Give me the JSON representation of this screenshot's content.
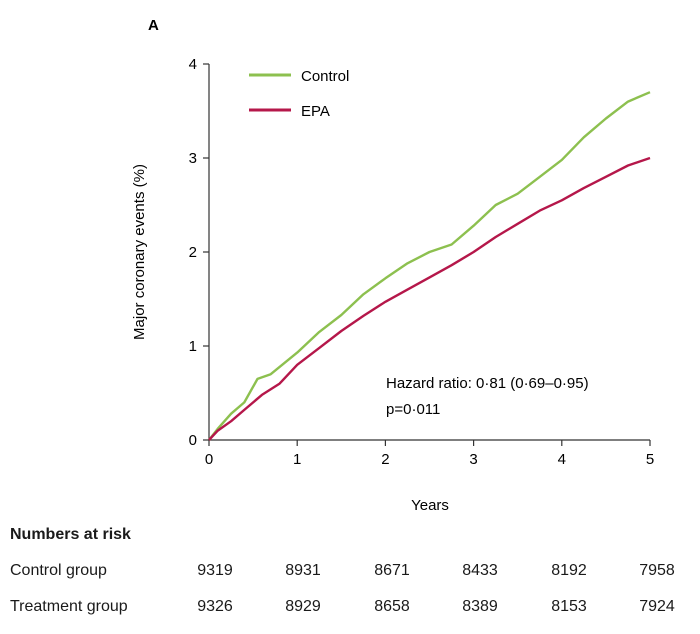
{
  "panel_label": "A",
  "chart_data": {
    "type": "line",
    "xlabel": "Years",
    "ylabel": "Major coronary events (%)",
    "xlim": [
      0,
      5
    ],
    "ylim": [
      0,
      4
    ],
    "xticks": [
      "0",
      "1",
      "2",
      "3",
      "4",
      "5"
    ],
    "yticks": [
      "0",
      "1",
      "2",
      "3",
      "4"
    ],
    "grid": false,
    "legend_position": "top-left",
    "series": [
      {
        "name": "Control",
        "color": "#8dc04f",
        "x": [
          0,
          0.1,
          0.25,
          0.4,
          0.55,
          0.7,
          1.0,
          1.25,
          1.5,
          1.75,
          2.0,
          2.25,
          2.5,
          2.75,
          3.0,
          3.25,
          3.5,
          3.75,
          4.0,
          4.25,
          4.5,
          4.75,
          5.0
        ],
        "y": [
          0,
          0.12,
          0.28,
          0.4,
          0.65,
          0.7,
          0.93,
          1.15,
          1.33,
          1.55,
          1.72,
          1.88,
          2.0,
          2.08,
          2.28,
          2.5,
          2.62,
          2.8,
          2.98,
          3.22,
          3.42,
          3.6,
          3.7
        ]
      },
      {
        "name": "EPA",
        "color": "#b5174a",
        "x": [
          0,
          0.1,
          0.25,
          0.4,
          0.6,
          0.8,
          1.0,
          1.25,
          1.5,
          1.75,
          2.0,
          2.25,
          2.5,
          2.75,
          3.0,
          3.25,
          3.5,
          3.75,
          4.0,
          4.25,
          4.5,
          4.75,
          5.0
        ],
        "y": [
          0,
          0.1,
          0.2,
          0.32,
          0.48,
          0.6,
          0.8,
          0.98,
          1.16,
          1.32,
          1.47,
          1.6,
          1.73,
          1.86,
          2.0,
          2.16,
          2.3,
          2.44,
          2.55,
          2.68,
          2.8,
          2.92,
          3.0
        ]
      }
    ],
    "annotations": [
      "Hazard ratio: 0·81 (0·69–0·95)",
      "p=0·011"
    ]
  },
  "risk_table": {
    "title": "Numbers at risk",
    "rows": [
      {
        "label": "Control group",
        "values": [
          "9319",
          "8931",
          "8671",
          "8433",
          "8192",
          "7958"
        ]
      },
      {
        "label": "Treatment group",
        "values": [
          "9326",
          "8929",
          "8658",
          "8389",
          "8153",
          "7924"
        ]
      }
    ]
  }
}
